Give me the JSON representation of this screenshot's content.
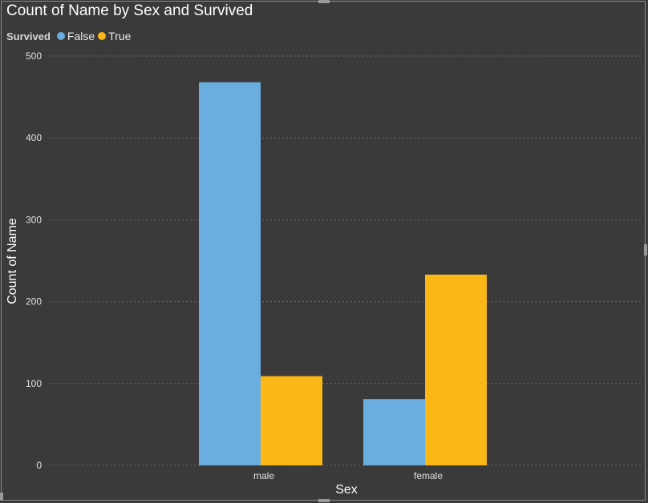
{
  "title": "Count of Name by Sex and Survived",
  "legend": {
    "title": "Survived",
    "items": [
      {
        "label": "False",
        "color": "#6aaee0"
      },
      {
        "label": "True",
        "color": "#fbb716"
      }
    ]
  },
  "chart_data": {
    "type": "bar",
    "title": "Count of Name by Sex and Survived",
    "xlabel": "Sex",
    "ylabel": "Count of Name",
    "categories": [
      "male",
      "female"
    ],
    "series": [
      {
        "name": "False",
        "values": [
          468,
          81
        ],
        "color": "#6aaee0"
      },
      {
        "name": "True",
        "values": [
          109,
          233
        ],
        "color": "#fbb716"
      }
    ],
    "ylim": [
      0,
      500
    ],
    "yticks": [
      0,
      100,
      200,
      300,
      400,
      500
    ],
    "grid": true,
    "legend_position": "top-left"
  }
}
